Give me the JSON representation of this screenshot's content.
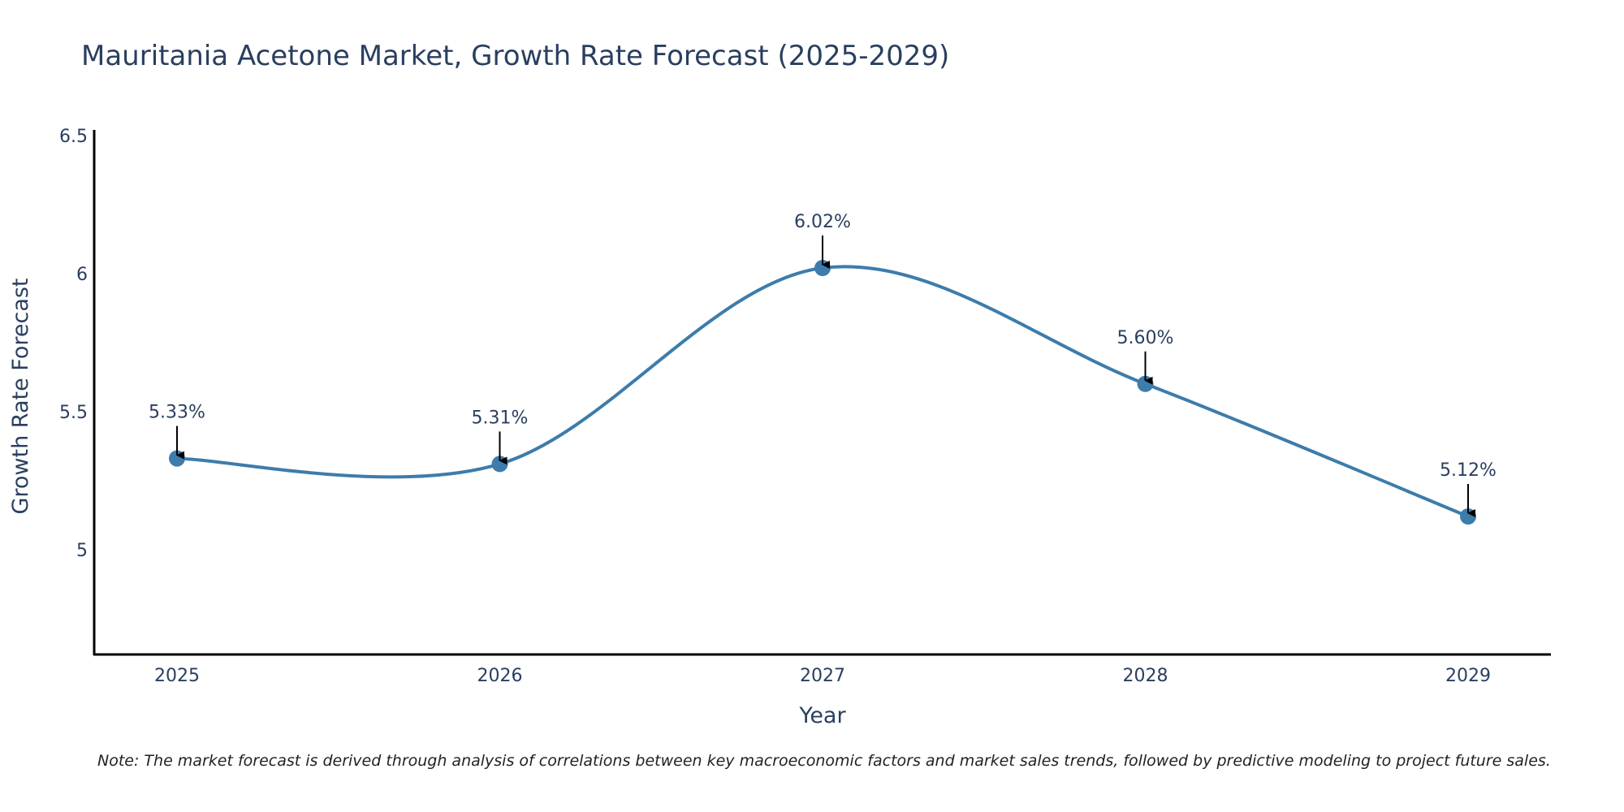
{
  "chart_data": {
    "type": "line",
    "title": "Mauritania Acetone Market, Growth Rate Forecast (2025-2029)",
    "xlabel": "Year",
    "ylabel": "Growth Rate Forecast",
    "categories": [
      "2025",
      "2026",
      "2027",
      "2028",
      "2029"
    ],
    "series": [
      {
        "name": "Growth Rate Forecast",
        "values": [
          5.33,
          5.31,
          6.02,
          5.6,
          5.12
        ],
        "labels": [
          "5.33%",
          "5.31%",
          "6.02%",
          "5.60%",
          "5.12%"
        ]
      }
    ],
    "ylim": [
      4.62,
      6.52
    ],
    "yticks": [
      5,
      5.5,
      6,
      6.5
    ],
    "ytick_labels": [
      "5",
      "5.5",
      "6",
      "6.5"
    ],
    "grid": false,
    "line_shape": "spline",
    "colors": {
      "line": "#3d7cab",
      "marker": "#3d7cab",
      "arrow": "#000000",
      "axis": "#000000",
      "text": "#2a3f5f"
    },
    "note": "Note: The market forecast is derived through analysis of correlations between key macroeconomic factors and market sales trends, followed by predictive modeling to project future sales."
  }
}
